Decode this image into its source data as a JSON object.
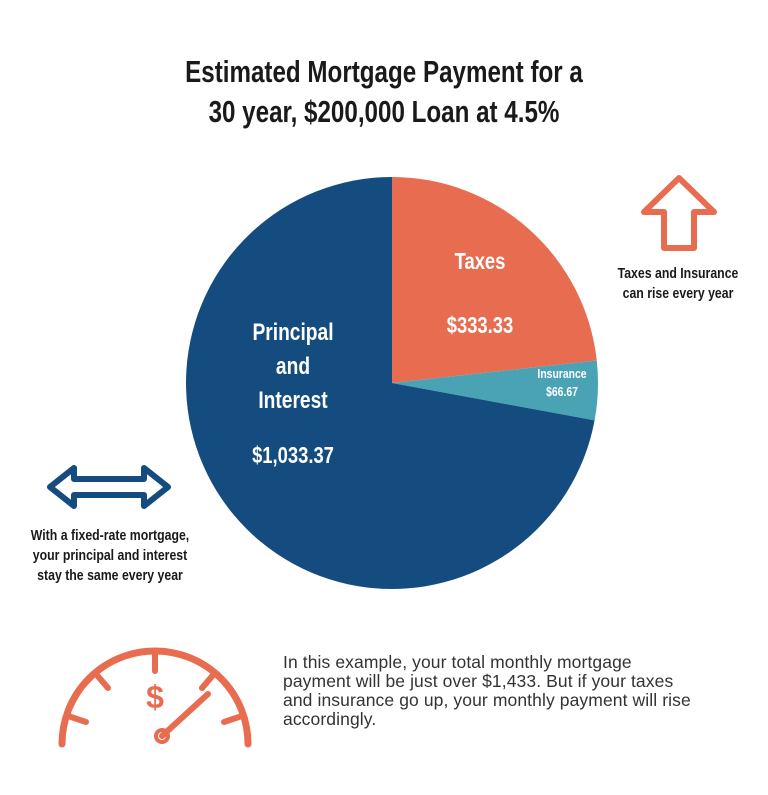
{
  "title_lines": [
    "Estimated Mortgage Payment for a",
    "30 year, $200,000 Loan at 4.5%"
  ],
  "chart_data": {
    "type": "pie",
    "title": "Estimated Mortgage Payment for a 30 year, $200,000 Loan at 4.5%",
    "slices": [
      {
        "name": "Taxes",
        "value": 333.33,
        "label": "$333.33",
        "color": "#e86c4f"
      },
      {
        "name": "Insurance",
        "value": 66.67,
        "label": "$66.67",
        "color": "#4aa3b5"
      },
      {
        "name": "Principal and Interest",
        "value": 1033.37,
        "label": "$1,033.37",
        "color": "#154c80"
      }
    ]
  },
  "labels": {
    "pi_lines": [
      "Principal",
      "and",
      "Interest"
    ],
    "pi_value": "$1,033.37",
    "tax_name": "Taxes",
    "tax_value": "$333.33",
    "ins_name": "Insurance",
    "ins_value": "$66.67"
  },
  "notes": {
    "right_lines": [
      "Taxes and Insurance",
      "can rise every year"
    ],
    "left_lines": [
      "With a fixed-rate mortgage,",
      "your principal and interest",
      "stay the same every year"
    ]
  },
  "body_text": "In this example, your total monthly mortgage payment will be just over $1,433.  But if your taxes and insurance go up, your monthly payment will rise accordingly.",
  "gauge_symbol": "$",
  "colors": {
    "orange": "#e86c4f",
    "teal": "#4aa3b5",
    "blue": "#154c80"
  },
  "icons": {
    "up_arrow": "up-arrow-icon",
    "double_arrow": "double-arrow-icon",
    "gauge": "speedometer-icon"
  }
}
